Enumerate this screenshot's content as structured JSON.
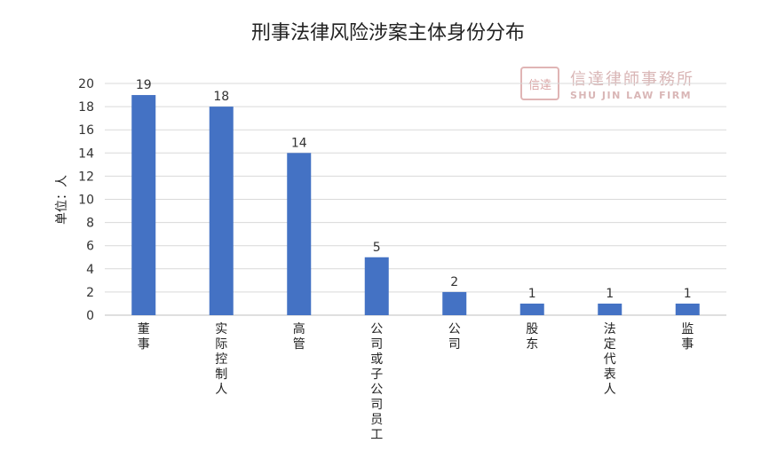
{
  "chart_data": {
    "type": "bar",
    "title": "刑事法律风险涉案主体身份分布",
    "ylabel": "单位：人",
    "categories": [
      "董事",
      "实际控制人",
      "高管",
      "公司或子公司员工",
      "公司",
      "股东",
      "法定代表人",
      "监事"
    ],
    "values": [
      19,
      18,
      14,
      5,
      2,
      1,
      1,
      1
    ],
    "ylim": [
      0,
      20
    ],
    "yticks": [
      0,
      2,
      4,
      6,
      8,
      10,
      12,
      14,
      16,
      18,
      20
    ],
    "grid": true,
    "bar_color": "#4472C4"
  },
  "watermark": {
    "name_cn": "信達律師事務所",
    "name_en": "SHU JIN LAW FIRM",
    "logo_text": "信達"
  }
}
